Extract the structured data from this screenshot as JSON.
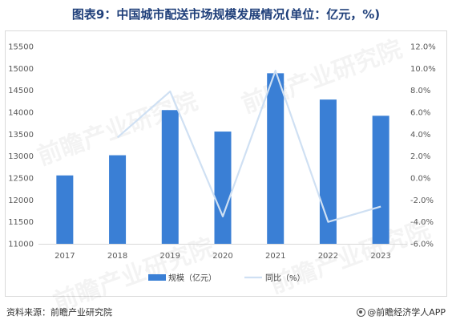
{
  "title": "图表9：中国城市配送市场规模发展情况(单位：亿元，%)",
  "chart_data": {
    "type": "bar",
    "categories": [
      "2017",
      "2018",
      "2019",
      "2020",
      "2021",
      "2022",
      "2023"
    ],
    "series": [
      {
        "name": "规模（亿元）",
        "type": "bar",
        "axis": "left",
        "color": "#3a7fd5",
        "values": [
          12560,
          13020,
          14050,
          13560,
          14890,
          14290,
          13920
        ]
      },
      {
        "name": "同比（%）",
        "type": "line",
        "axis": "right",
        "color": "#cfe0f3",
        "values": [
          null,
          3.7,
          7.9,
          -3.5,
          9.8,
          -4.0,
          -2.6
        ]
      }
    ],
    "yleft": {
      "min": 11000,
      "max": 15500,
      "step": 500
    },
    "yright": {
      "min": -6.0,
      "max": 12.0,
      "step": 2.0
    },
    "yright_ticks": [
      "-6.0%",
      "-4.0%",
      "-2.0%",
      "0.0%",
      "2.0%",
      "4.0%",
      "6.0%",
      "8.0%",
      "10.0%",
      "12.0%"
    ],
    "legend_position": "bottom",
    "grid": false
  },
  "watermark": "前瞻产业研究院",
  "footer": {
    "source": "资料来源：前瞻产业研究院",
    "brand": "@前瞻经济学人APP"
  }
}
